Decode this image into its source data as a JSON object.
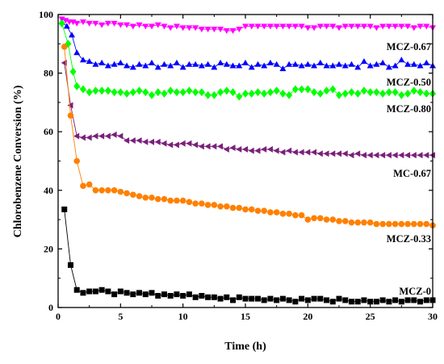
{
  "chart_data": {
    "type": "scatter",
    "xlabel": "Time (h)",
    "ylabel": "Chlorobenzene Conversion (%)",
    "xlim": [
      0,
      30
    ],
    "ylim": [
      0,
      100
    ],
    "xticks": [
      "0",
      "5",
      "10",
      "15",
      "20",
      "25",
      "30"
    ],
    "yticks": [
      "0",
      "20",
      "40",
      "60",
      "80",
      "100"
    ],
    "grid": false,
    "legend": "inline labels",
    "series": [
      {
        "name": "MCZ-0.67",
        "color": "#ff00ff",
        "marker": "triangle-down",
        "x": [
          0.3,
          0.6,
          0.9,
          1.2,
          1.5,
          2.0,
          2.5,
          3.0,
          3.5,
          4.0,
          4.5,
          5.0,
          5.5,
          6.0,
          6.5,
          7.0,
          7.5,
          8.0,
          8.5,
          9.0,
          9.5,
          10.0,
          10.5,
          11.0,
          11.5,
          12.0,
          12.5,
          13.0,
          13.5,
          14.0,
          14.5,
          15.0,
          15.5,
          16.0,
          16.5,
          17.0,
          17.5,
          18.0,
          18.5,
          19.0,
          19.5,
          20.0,
          20.5,
          21.0,
          21.5,
          22.0,
          22.5,
          23.0,
          23.5,
          24.0,
          24.5,
          25.0,
          25.5,
          26.0,
          26.5,
          27.0,
          27.5,
          28.0,
          28.5,
          29.0,
          29.5,
          30.0
        ],
        "y": [
          98.5,
          98.0,
          97.5,
          97.5,
          97.0,
          97.5,
          97.0,
          97.0,
          96.5,
          97.0,
          97.0,
          96.5,
          96.5,
          96.0,
          96.5,
          96.0,
          96.0,
          96.5,
          96.0,
          95.5,
          96.0,
          95.5,
          95.5,
          95.5,
          95.0,
          95.0,
          95.0,
          95.0,
          94.5,
          94.5,
          95.0,
          96.0,
          96.0,
          96.0,
          96.0,
          96.0,
          96.0,
          96.0,
          96.0,
          96.0,
          96.0,
          95.5,
          95.5,
          96.0,
          96.0,
          96.0,
          95.5,
          96.0,
          96.0,
          96.0,
          96.0,
          96.0,
          95.5,
          96.0,
          96.0,
          96.0,
          96.0,
          96.0,
          95.5,
          96.0,
          96.0,
          95.5
        ]
      },
      {
        "name": "MCZ-0.50",
        "color": "#0000ff",
        "marker": "triangle-up",
        "x": [
          0.3,
          0.7,
          1.1,
          1.5,
          2.0,
          2.5,
          3.0,
          3.5,
          4.0,
          4.5,
          5.0,
          5.5,
          6.0,
          6.5,
          7.0,
          7.5,
          8.0,
          8.5,
          9.0,
          9.5,
          10.0,
          10.5,
          11.0,
          11.5,
          12.0,
          12.5,
          13.0,
          13.5,
          14.0,
          14.5,
          15.0,
          15.5,
          16.0,
          16.5,
          17.0,
          17.5,
          18.0,
          18.5,
          19.0,
          19.5,
          20.0,
          20.5,
          21.0,
          21.5,
          22.0,
          22.5,
          23.0,
          23.5,
          24.0,
          24.5,
          25.0,
          25.5,
          26.0,
          26.5,
          27.0,
          27.5,
          28.0,
          28.5,
          29.0,
          29.5,
          30.0
        ],
        "y": [
          97.5,
          96.0,
          93.0,
          87.0,
          84.5,
          84.0,
          83.0,
          83.5,
          82.5,
          83.0,
          83.5,
          82.5,
          82.0,
          83.0,
          82.5,
          83.5,
          82.0,
          83.0,
          82.5,
          83.5,
          82.0,
          83.0,
          83.0,
          82.5,
          83.0,
          82.0,
          83.5,
          83.0,
          82.5,
          82.5,
          83.5,
          82.0,
          83.0,
          82.5,
          83.5,
          83.0,
          81.5,
          83.0,
          83.0,
          82.5,
          83.0,
          82.5,
          83.5,
          82.5,
          82.5,
          83.0,
          82.5,
          83.0,
          82.0,
          84.0,
          82.5,
          83.0,
          83.5,
          82.0,
          82.5,
          84.5,
          83.0,
          83.0,
          82.5,
          83.5,
          82.5
        ]
      },
      {
        "name": "MCZ-0.80",
        "color": "#00ff00",
        "marker": "diamond",
        "x": [
          0.3,
          0.8,
          1.2,
          1.5,
          2.0,
          2.5,
          3.0,
          3.5,
          4.0,
          4.5,
          5.0,
          5.5,
          6.0,
          6.5,
          7.0,
          7.5,
          8.0,
          8.5,
          9.0,
          9.5,
          10.0,
          10.5,
          11.0,
          11.5,
          12.0,
          12.5,
          13.0,
          13.5,
          14.0,
          14.5,
          15.0,
          15.5,
          16.0,
          16.5,
          17.0,
          17.5,
          18.0,
          18.5,
          19.0,
          19.5,
          20.0,
          20.5,
          21.0,
          21.5,
          22.0,
          22.5,
          23.0,
          23.5,
          24.0,
          24.5,
          25.0,
          25.5,
          26.0,
          26.5,
          27.0,
          27.5,
          28.0,
          28.5,
          29.0,
          29.5,
          30.0
        ],
        "y": [
          97.0,
          90.0,
          80.5,
          75.5,
          74.5,
          73.5,
          74.0,
          74.0,
          74.0,
          73.5,
          73.5,
          73.0,
          73.5,
          74.0,
          73.5,
          72.5,
          73.5,
          73.0,
          74.0,
          73.5,
          73.5,
          74.0,
          73.5,
          73.5,
          72.5,
          72.5,
          73.5,
          74.0,
          73.5,
          72.0,
          73.0,
          73.0,
          73.5,
          73.0,
          73.5,
          74.0,
          73.0,
          72.5,
          74.5,
          74.5,
          74.5,
          73.5,
          73.0,
          74.0,
          74.5,
          72.5,
          73.0,
          73.5,
          73.0,
          74.0,
          73.5,
          73.5,
          73.0,
          73.5,
          73.5,
          72.5,
          73.0,
          74.0,
          73.5,
          73.0,
          73.0
        ]
      },
      {
        "name": "MC-0.67",
        "color": "#7b1f7b",
        "marker": "triangle-left",
        "x": [
          0.5,
          1.0,
          1.5,
          2.0,
          2.5,
          3.0,
          3.5,
          4.0,
          4.5,
          5.0,
          5.5,
          6.0,
          6.5,
          7.0,
          7.5,
          8.0,
          8.5,
          9.0,
          9.5,
          10.0,
          10.5,
          11.0,
          11.5,
          12.0,
          12.5,
          13.0,
          13.5,
          14.0,
          14.5,
          15.0,
          15.5,
          16.0,
          16.5,
          17.0,
          17.5,
          18.0,
          18.5,
          19.0,
          19.5,
          20.0,
          20.5,
          21.0,
          21.5,
          22.0,
          22.5,
          23.0,
          23.5,
          24.0,
          24.5,
          25.0,
          25.5,
          26.0,
          26.5,
          27.0,
          27.5,
          28.0,
          28.5,
          29.0,
          29.5,
          30.0
        ],
        "y": [
          83.5,
          69.0,
          58.5,
          58.0,
          58.0,
          58.5,
          58.5,
          58.5,
          59.0,
          58.5,
          57.0,
          57.0,
          57.0,
          56.5,
          56.5,
          56.5,
          56.0,
          55.5,
          55.5,
          56.0,
          56.0,
          55.5,
          55.0,
          55.0,
          55.0,
          55.0,
          54.0,
          54.5,
          54.0,
          54.0,
          53.5,
          53.5,
          54.0,
          54.0,
          53.5,
          53.0,
          53.5,
          53.0,
          53.0,
          53.0,
          53.0,
          52.5,
          52.5,
          52.5,
          52.5,
          52.5,
          52.0,
          52.5,
          52.0,
          52.0,
          52.0,
          52.0,
          52.0,
          52.0,
          52.0,
          52.0,
          52.0,
          52.0,
          52.0,
          52.0
        ]
      },
      {
        "name": "MCZ-0.33",
        "color": "#ff8000",
        "marker": "circle",
        "x": [
          0.5,
          1.0,
          1.5,
          2.0,
          2.5,
          3.0,
          3.5,
          4.0,
          4.5,
          5.0,
          5.5,
          6.0,
          6.5,
          7.0,
          7.5,
          8.0,
          8.5,
          9.0,
          9.5,
          10.0,
          10.5,
          11.0,
          11.5,
          12.0,
          12.5,
          13.0,
          13.5,
          14.0,
          14.5,
          15.0,
          15.5,
          16.0,
          16.5,
          17.0,
          17.5,
          18.0,
          18.5,
          19.0,
          19.5,
          20.0,
          20.5,
          21.0,
          21.5,
          22.0,
          22.5,
          23.0,
          23.5,
          24.0,
          24.5,
          25.0,
          25.5,
          26.0,
          26.5,
          27.0,
          27.5,
          28.0,
          28.5,
          29.0,
          29.5,
          30.0
        ],
        "y": [
          89.0,
          65.5,
          50.0,
          41.5,
          42.0,
          40.0,
          40.0,
          40.0,
          40.0,
          39.5,
          39.0,
          38.5,
          38.0,
          37.5,
          37.5,
          37.0,
          37.0,
          36.5,
          36.5,
          36.5,
          36.0,
          35.5,
          35.5,
          35.0,
          35.0,
          34.5,
          34.5,
          34.0,
          34.0,
          33.5,
          33.5,
          33.0,
          33.0,
          32.5,
          32.5,
          32.0,
          32.0,
          31.5,
          31.5,
          30.0,
          30.5,
          30.5,
          30.0,
          30.0,
          29.5,
          29.5,
          29.0,
          29.0,
          29.0,
          29.0,
          28.5,
          28.5,
          28.5,
          28.5,
          28.5,
          28.5,
          28.5,
          28.5,
          28.5,
          28.0
        ]
      },
      {
        "name": "MCZ-0",
        "color": "#000000",
        "marker": "square",
        "x": [
          0.5,
          1.0,
          1.5,
          2.0,
          2.5,
          3.0,
          3.5,
          4.0,
          4.5,
          5.0,
          5.5,
          6.0,
          6.5,
          7.0,
          7.5,
          8.0,
          8.5,
          9.0,
          9.5,
          10.0,
          10.5,
          11.0,
          11.5,
          12.0,
          12.5,
          13.0,
          13.5,
          14.0,
          14.5,
          15.0,
          15.5,
          16.0,
          16.5,
          17.0,
          17.5,
          18.0,
          18.5,
          19.0,
          19.5,
          20.0,
          20.5,
          21.0,
          21.5,
          22.0,
          22.5,
          23.0,
          23.5,
          24.0,
          24.5,
          25.0,
          25.5,
          26.0,
          26.5,
          27.0,
          27.5,
          28.0,
          28.5,
          29.0,
          29.5,
          30.0
        ],
        "y": [
          33.5,
          14.5,
          6.0,
          5.0,
          5.5,
          5.5,
          6.0,
          5.5,
          4.5,
          5.5,
          5.0,
          4.5,
          5.0,
          4.5,
          5.0,
          4.0,
          4.5,
          4.0,
          4.5,
          4.0,
          4.5,
          3.5,
          4.0,
          3.5,
          3.5,
          3.0,
          3.5,
          2.5,
          3.5,
          3.0,
          3.0,
          3.0,
          2.5,
          3.0,
          2.5,
          3.0,
          2.5,
          2.0,
          3.0,
          2.5,
          3.0,
          3.0,
          2.5,
          2.0,
          3.0,
          2.5,
          2.0,
          2.0,
          2.5,
          2.0,
          2.0,
          2.5,
          2.0,
          2.5,
          2.0,
          2.5,
          2.5,
          2.0,
          2.5,
          2.5
        ]
      }
    ]
  }
}
